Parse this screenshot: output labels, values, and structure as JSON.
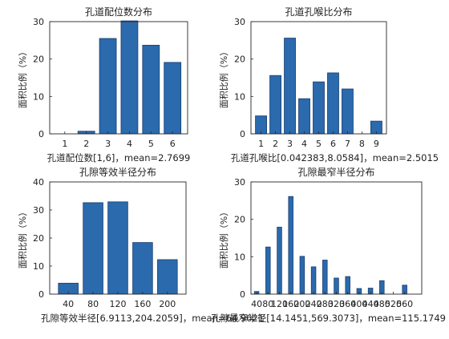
{
  "bar_color": "#2a6aad",
  "bar_edge": "#1a3f6e",
  "chart_data": [
    {
      "type": "bar",
      "title": "孔道配位数分布",
      "ylabel": "面积比例（%）",
      "xlabel": "孔道配位数[1,6]，mean=2.7699",
      "categories": [
        "1",
        "2",
        "3",
        "4",
        "5",
        "6"
      ],
      "values": [
        0,
        0.7,
        25.5,
        30.2,
        23.7,
        19.1
      ],
      "ylim": [
        0,
        30
      ],
      "yticks": [
        "0",
        "10",
        "20",
        "30"
      ]
    },
    {
      "type": "bar",
      "title": "孔道孔喉比分布",
      "ylabel": "面积比例（%）",
      "xlabel": "孔道孔喉比[0.042383,8.0584]，mean=2.5015",
      "categories": [
        "1",
        "2",
        "3",
        "4",
        "5",
        "6",
        "7",
        "8",
        "9"
      ],
      "values": [
        4.8,
        15.6,
        25.6,
        9.4,
        13.9,
        16.3,
        12.0,
        0,
        3.4
      ],
      "ylim": [
        0,
        30
      ],
      "yticks": [
        "0",
        "10",
        "20",
        "30"
      ]
    },
    {
      "type": "bar",
      "title": "孔隙等效半径分布",
      "ylabel": "面积比例（%）",
      "xlabel": "孔隙等效半径[6.9113,204.2059]，mean=64.9621",
      "categories": [
        "40",
        "80",
        "120",
        "160",
        "200"
      ],
      "values": [
        3.9,
        32.6,
        32.9,
        18.4,
        12.3
      ],
      "ylim": [
        0,
        40
      ],
      "yticks": [
        "0",
        "10",
        "20",
        "30",
        "40"
      ]
    },
    {
      "type": "bar",
      "title": "孔隙最窄半径分布",
      "ylabel": "面积比例（%）",
      "xlabel": "孔隙最窄半径[14.1451,569.3073]，mean=115.1749",
      "tick_labels": [
        "40",
        "80",
        "120",
        "160",
        "200",
        "240",
        "280",
        "320",
        "360",
        "400",
        "440",
        "480",
        "520",
        "560"
      ],
      "categories": [
        "40",
        "80",
        "120",
        "160",
        "200",
        "240",
        "280",
        "320",
        "360",
        "400",
        "440",
        "480",
        "520",
        "560"
      ],
      "values": [
        0.7,
        12.6,
        17.9,
        26.1,
        10.1,
        7.3,
        9.1,
        4.3,
        4.7,
        1.5,
        1.6,
        3.6,
        0,
        2.4
      ],
      "ylim": [
        0,
        30
      ],
      "yticks": [
        "0",
        "10",
        "20",
        "30"
      ]
    }
  ]
}
